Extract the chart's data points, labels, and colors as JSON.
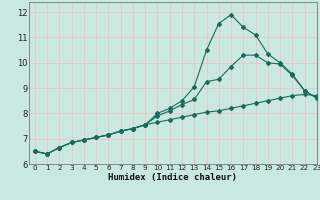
{
  "xlabel": "Humidex (Indice chaleur)",
  "bg_color": "#c8e8e0",
  "grid_color": "#e8c8c8",
  "line_color": "#1a6b5a",
  "xlim": [
    -0.5,
    23
  ],
  "ylim": [
    6.0,
    12.4
  ],
  "xticks": [
    0,
    1,
    2,
    3,
    4,
    5,
    6,
    7,
    8,
    9,
    10,
    11,
    12,
    13,
    14,
    15,
    16,
    17,
    18,
    19,
    20,
    21,
    22,
    23
  ],
  "yticks": [
    6,
    7,
    8,
    9,
    10,
    11,
    12
  ],
  "line1_x": [
    0,
    1,
    2,
    3,
    4,
    5,
    6,
    7,
    8,
    9,
    10,
    11,
    12,
    13,
    14,
    15,
    16,
    17,
    18,
    19,
    20,
    21,
    22,
    23
  ],
  "line1_y": [
    6.5,
    6.4,
    6.65,
    6.85,
    6.95,
    7.05,
    7.15,
    7.3,
    7.4,
    7.55,
    7.65,
    7.75,
    7.85,
    7.95,
    8.05,
    8.1,
    8.2,
    8.3,
    8.4,
    8.5,
    8.6,
    8.7,
    8.75,
    8.7
  ],
  "line2_x": [
    0,
    1,
    2,
    3,
    4,
    5,
    6,
    7,
    8,
    9,
    10,
    11,
    12,
    13,
    14,
    15,
    16,
    17,
    18,
    19,
    20,
    21,
    22,
    23
  ],
  "line2_y": [
    6.5,
    6.4,
    6.65,
    6.85,
    6.95,
    7.05,
    7.15,
    7.3,
    7.4,
    7.55,
    7.9,
    8.1,
    8.35,
    8.55,
    9.25,
    9.35,
    9.85,
    10.3,
    10.3,
    10.0,
    9.95,
    9.5,
    8.9,
    8.6
  ],
  "line3_x": [
    0,
    1,
    2,
    3,
    4,
    5,
    6,
    7,
    8,
    9,
    10,
    11,
    12,
    13,
    14,
    15,
    16,
    17,
    18,
    19,
    20,
    21,
    22,
    23
  ],
  "line3_y": [
    6.5,
    6.4,
    6.65,
    6.85,
    6.95,
    7.05,
    7.15,
    7.3,
    7.4,
    7.55,
    8.0,
    8.2,
    8.5,
    9.05,
    10.5,
    11.55,
    11.9,
    11.4,
    11.1,
    10.35,
    10.0,
    9.55,
    8.9,
    8.6
  ]
}
